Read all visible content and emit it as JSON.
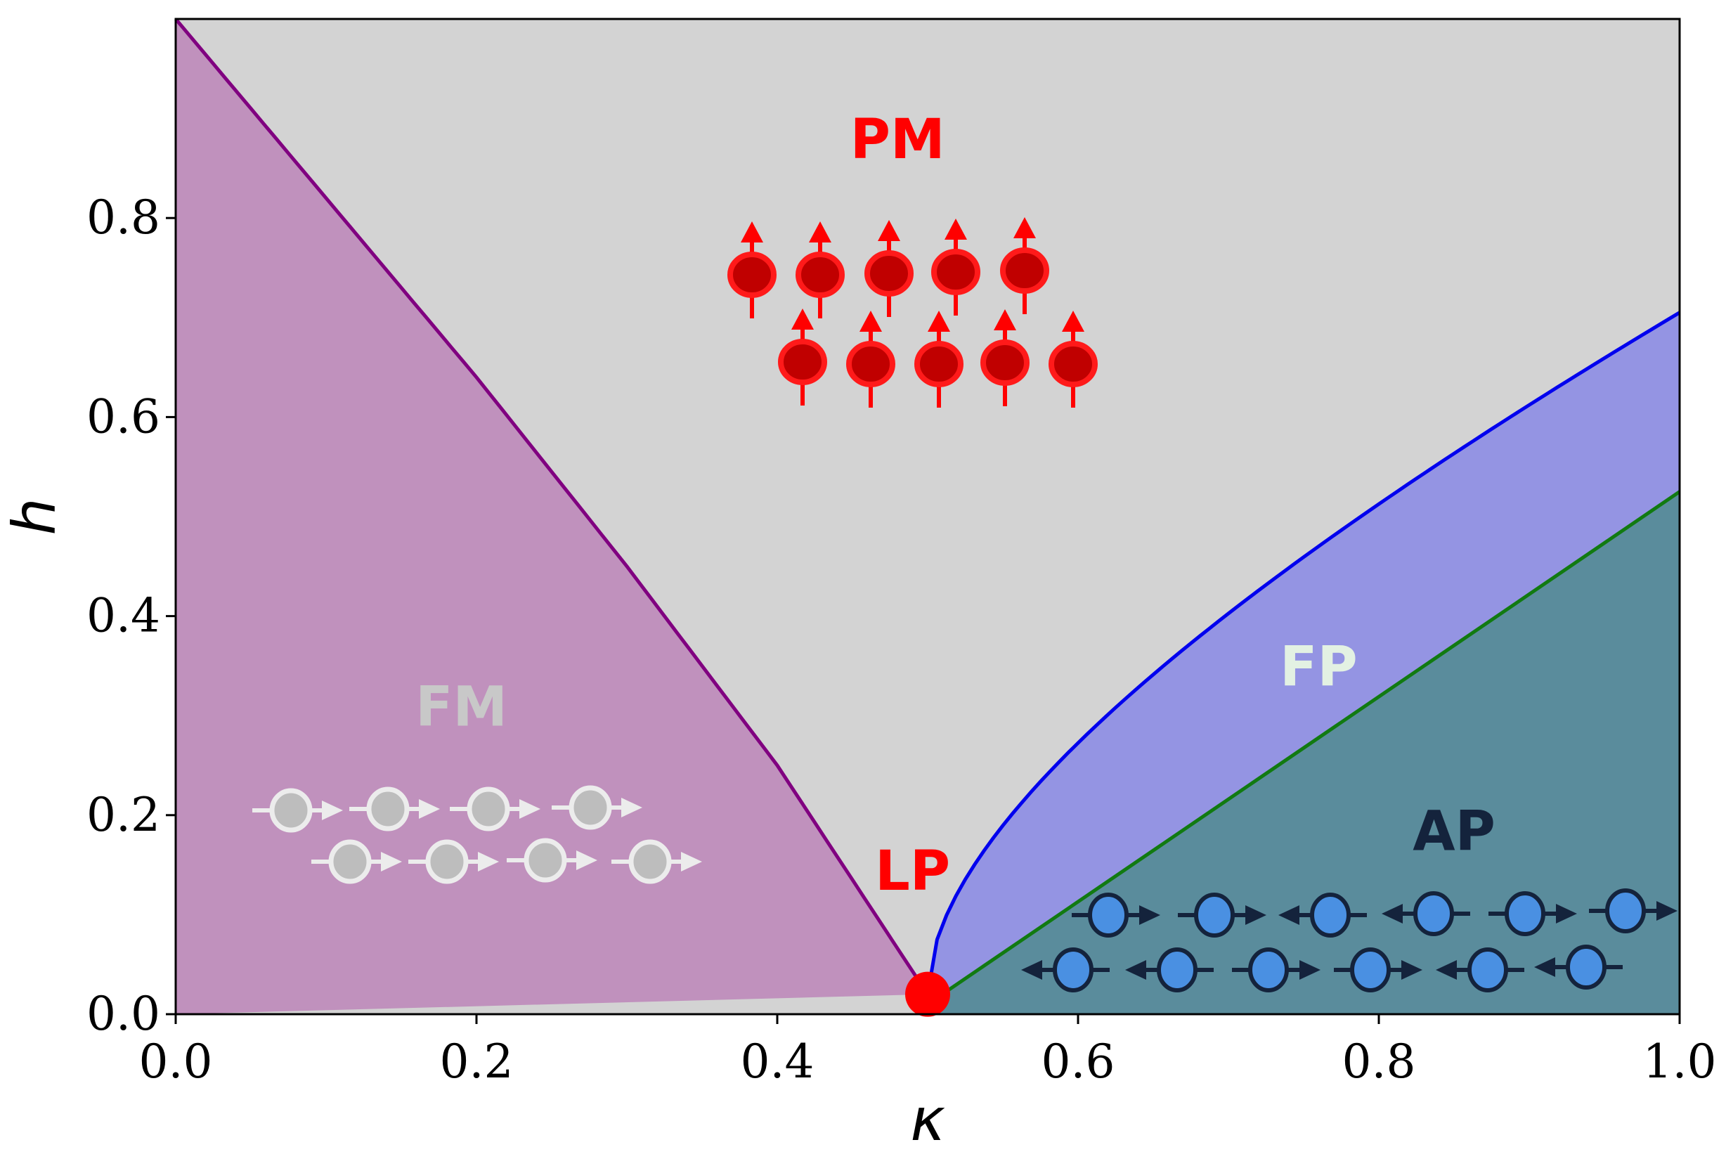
{
  "chart_data": {
    "type": "area",
    "title": "",
    "xlabel": "κ",
    "ylabel": "h",
    "xlim": [
      0.0,
      1.0
    ],
    "ylim": [
      0.0,
      1.0
    ],
    "xticks": [
      "0.0",
      "0.2",
      "0.4",
      "0.6",
      "0.8",
      "1.0"
    ],
    "yticks": [
      "0.0",
      "0.2",
      "0.4",
      "0.6",
      "0.8"
    ],
    "grid": false,
    "boundaries": [
      {
        "id": "fm-pm",
        "color": "#800080",
        "x": [
          0.0,
          0.1,
          0.2,
          0.3,
          0.4,
          0.5
        ],
        "y": [
          1.0,
          0.82,
          0.64,
          0.45,
          0.25,
          0.02
        ]
      },
      {
        "id": "pm-fp",
        "color": "#0000ee",
        "x": [
          0.5,
          0.52,
          0.56,
          0.6,
          0.7,
          0.8,
          0.9,
          1.0
        ],
        "y": [
          0.02,
          0.1,
          0.17,
          0.22,
          0.34,
          0.46,
          0.58,
          0.705
        ]
      },
      {
        "id": "fp-ap",
        "color": "#117a11",
        "x": [
          0.5,
          1.0
        ],
        "y": [
          0.01,
          0.525
        ]
      }
    ],
    "regions": [
      {
        "label": "PM",
        "color": "#d3d3d3",
        "label_color": "#ff0000",
        "label_pos": [
          0.48,
          0.86
        ]
      },
      {
        "label": "FM",
        "color": "#c091bd",
        "label_color": "#c8c8c8",
        "label_pos": [
          0.19,
          0.29
        ]
      },
      {
        "label": "FP",
        "color": "#9494e3",
        "label_color": "#e3f1e3",
        "label_pos": [
          0.76,
          0.33
        ]
      },
      {
        "label": "AP",
        "color": "#5a8c9c",
        "label_color": "#14233c",
        "label_pos": [
          0.85,
          0.165
        ]
      }
    ],
    "points": [
      {
        "label": "LP",
        "x": 0.5,
        "y": 0.02,
        "color": "#ff0000",
        "label_color": "#ff0000",
        "label_pos": [
          0.49,
          0.125
        ]
      }
    ]
  }
}
